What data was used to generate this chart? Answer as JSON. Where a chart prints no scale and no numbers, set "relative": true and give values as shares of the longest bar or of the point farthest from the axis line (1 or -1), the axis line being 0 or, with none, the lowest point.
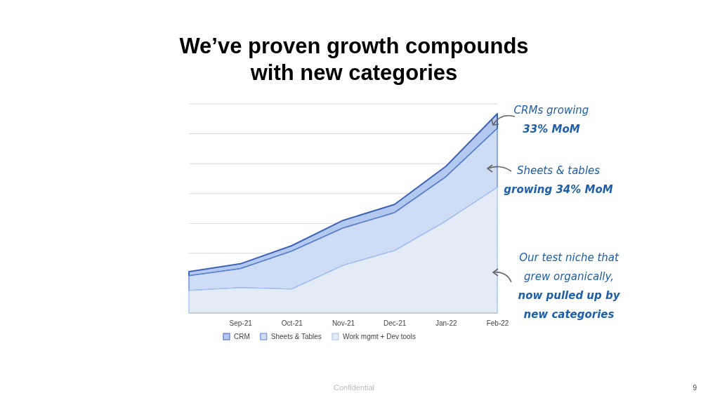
{
  "chart_data": {
    "type": "area",
    "title": "We’ve proven growth compounds\nwith new categories",
    "categories": [
      null,
      "Sep-21",
      "Oct-21",
      "Nov-21",
      "Dec-21",
      "Jan-22",
      "Feb-22"
    ],
    "relative": true,
    "stacked": true,
    "grid": true,
    "legend": "bottom",
    "series": [
      {
        "name": "Work mgmt + Dev tools",
        "color": "#e3ebf7",
        "values": [
          0.113,
          0.127,
          0.12,
          0.239,
          0.313,
          0.461,
          0.63
        ]
      },
      {
        "name": "Sheets & Tables",
        "color": "#cfdcf5",
        "values": [
          0.074,
          0.095,
          0.19,
          0.187,
          0.19,
          0.222,
          0.296
        ]
      },
      {
        "name": "CRM",
        "color": "#b4c9f0",
        "values": [
          0.021,
          0.025,
          0.028,
          0.039,
          0.042,
          0.053,
          0.074
        ]
      }
    ],
    "annotations": [
      "CRMs growing\n33% MoM",
      "Sheets & tables\ngrowing 34% MoM",
      "Our test niche that\ngrew organically,\nnow pulled up by\nnew categories",
      "Confidential",
      "9"
    ]
  }
}
